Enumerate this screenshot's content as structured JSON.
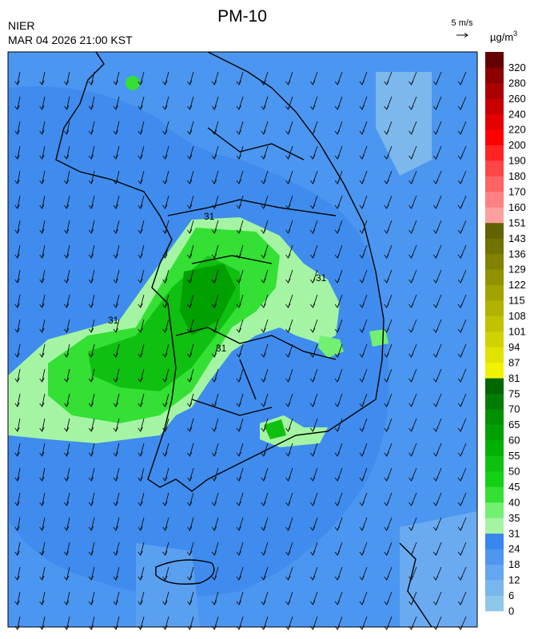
{
  "header": {
    "title": "PM-10",
    "agency": "NIER",
    "timestamp": "MAR 04 2026 21:00 KST"
  },
  "vector_key": {
    "label": "5 m/s"
  },
  "colorbar": {
    "unit": "µg/m",
    "unit_sup": "3",
    "levels": [
      {
        "label": 0,
        "color": "#8ec8e8"
      },
      {
        "label": 6,
        "color": "#78b6ee"
      },
      {
        "label": 12,
        "color": "#64a6f0"
      },
      {
        "label": 18,
        "color": "#4e96f0"
      },
      {
        "label": 24,
        "color": "#3886ee"
      },
      {
        "label": 31,
        "color": "#a4f4a4"
      },
      {
        "label": 35,
        "color": "#72f072"
      },
      {
        "label": 40,
        "color": "#34e034"
      },
      {
        "label": 45,
        "color": "#14d014"
      },
      {
        "label": 50,
        "color": "#10c010"
      },
      {
        "label": 55,
        "color": "#02b002"
      },
      {
        "label": 60,
        "color": "#00a000"
      },
      {
        "label": 65,
        "color": "#009000"
      },
      {
        "label": 70,
        "color": "#007c00"
      },
      {
        "label": 75,
        "color": "#006600"
      },
      {
        "label": 81,
        "color": "#f2f200"
      },
      {
        "label": 87,
        "color": "#e2e200"
      },
      {
        "label": 94,
        "color": "#d2d200"
      },
      {
        "label": 101,
        "color": "#c2c200"
      },
      {
        "label": 108,
        "color": "#b2b200"
      },
      {
        "label": 115,
        "color": "#a2a200"
      },
      {
        "label": 122,
        "color": "#929200"
      },
      {
        "label": 129,
        "color": "#828200"
      },
      {
        "label": 136,
        "color": "#727200"
      },
      {
        "label": 143,
        "color": "#626200"
      },
      {
        "label": 151,
        "color": "#ffa0a0"
      },
      {
        "label": 160,
        "color": "#ff8282"
      },
      {
        "label": 170,
        "color": "#ff6464"
      },
      {
        "label": 180,
        "color": "#ff4646"
      },
      {
        "label": 190,
        "color": "#ff2424"
      },
      {
        "label": 200,
        "color": "#ff0000"
      },
      {
        "label": 220,
        "color": "#e40000"
      },
      {
        "label": 240,
        "color": "#c80000"
      },
      {
        "label": 260,
        "color": "#aa0000"
      },
      {
        "label": 280,
        "color": "#8c0000"
      },
      {
        "label": 320,
        "color": "#640000"
      }
    ]
  },
  "map": {
    "contour_labels": [
      "31",
      "31",
      "31",
      "31"
    ]
  }
}
